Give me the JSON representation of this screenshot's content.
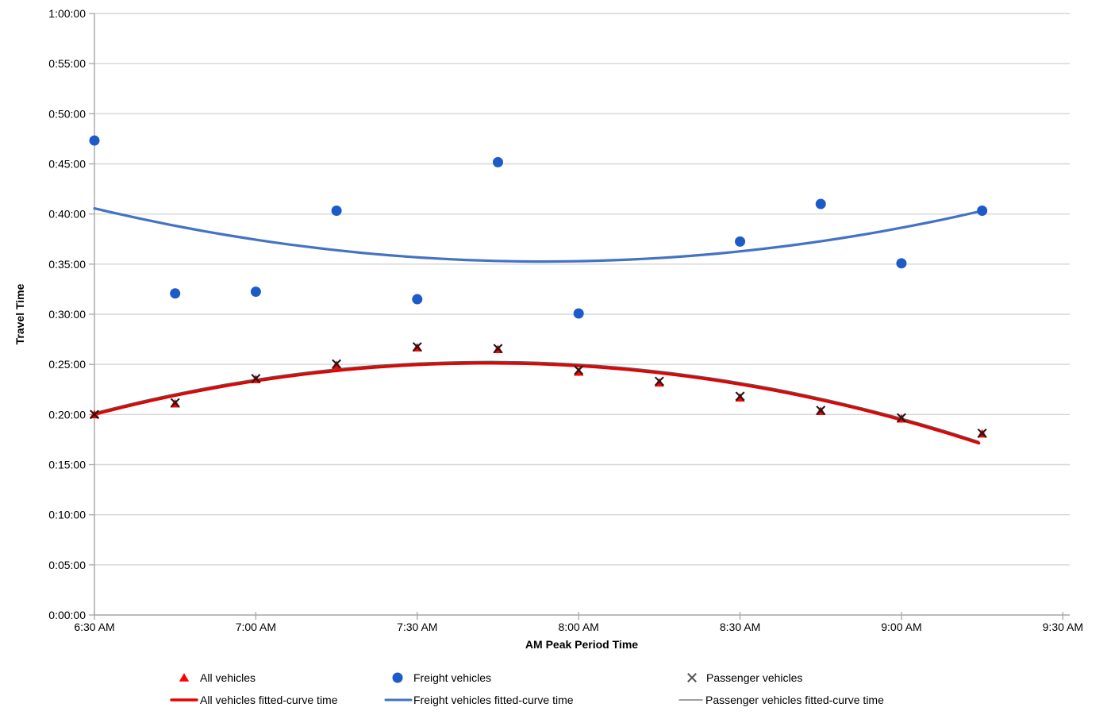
{
  "chart_data": {
    "type": "scatter",
    "title": "",
    "xlabel": "AM Peak Period Time",
    "ylabel": "Travel Time",
    "x_ticks": [
      "6:30 AM",
      "7:00 AM",
      "7:30 AM",
      "8:00 AM",
      "8:30 AM",
      "9:00 AM",
      "9:30 AM"
    ],
    "y_ticks": [
      "1:00:00",
      "0:55:00",
      "0:50:00",
      "0:45:00",
      "0:40:00",
      "0:35:00",
      "0:30:00",
      "0:25:00",
      "0:20:00",
      "0:15:00",
      "0:10:00",
      "0:05:00",
      "0:00:00"
    ],
    "x_range_hours": [
      6.5,
      9.5
    ],
    "y_range_minutes": [
      0,
      60
    ],
    "grid": "horizontal-only",
    "colors": {
      "freight_marker": "#1D5BC8",
      "freight_curve": "#4472C4",
      "all_marker": "#FF0000",
      "all_curve": "#E60000",
      "passenger_marker": "#1A1A1A",
      "passenger_curve": "#595959",
      "gridline": "#D6D6D6",
      "axis": "#A6A6A6",
      "text": "#000000"
    },
    "series": [
      {
        "name": "All vehicles",
        "marker": "triangle",
        "color": "#FF0000",
        "x_labels": [
          "6:30 AM",
          "6:45 AM",
          "7:00 AM",
          "7:15 AM",
          "7:30 AM",
          "7:45 AM",
          "8:00 AM",
          "8:15 AM",
          "8:30 AM",
          "8:45 AM",
          "9:00 AM",
          "9:15 AM"
        ],
        "x_hours": [
          6.5,
          6.75,
          7.0,
          7.25,
          7.5,
          7.75,
          8.0,
          8.25,
          8.5,
          8.75,
          9.0,
          9.25
        ],
        "y_minutes": [
          20.0,
          21.08,
          23.5,
          24.92,
          26.67,
          26.5,
          24.25,
          23.17,
          21.67,
          20.33,
          19.58,
          18.08
        ],
        "y_labels": [
          "0:20:00",
          "0:21:05",
          "0:23:30",
          "0:24:55",
          "0:26:40",
          "0:26:30",
          "0:24:15",
          "0:23:10",
          "0:21:40",
          "0:20:20",
          "0:19:35",
          "0:18:05"
        ]
      },
      {
        "name": "Freight vehicles",
        "marker": "circle",
        "color": "#1D5BC8",
        "x_labels": [
          "6:30 AM",
          "6:45 AM",
          "7:00 AM",
          "7:15 AM",
          "7:30 AM",
          "7:45 AM",
          "8:00 AM",
          "8:30 AM",
          "8:45 AM",
          "9:00 AM",
          "9:15 AM"
        ],
        "x_hours": [
          6.5,
          6.75,
          7.0,
          7.25,
          7.5,
          7.75,
          8.0,
          8.5,
          8.75,
          9.0,
          9.25
        ],
        "y_minutes": [
          47.33,
          32.08,
          32.25,
          40.33,
          31.5,
          45.17,
          30.08,
          37.25,
          41.0,
          35.08,
          40.33
        ],
        "y_labels": [
          "0:47:20",
          "0:32:05",
          "0:32:15",
          "0:40:20",
          "0:31:30",
          "0:45:10",
          "0:30:05",
          "0:37:15",
          "0:41:00",
          "0:35:05",
          "0:40:20"
        ]
      },
      {
        "name": "Passenger vehicles",
        "marker": "x",
        "color": "#1A1A1A",
        "x_labels": [
          "6:30 AM",
          "6:45 AM",
          "7:00 AM",
          "7:15 AM",
          "7:30 AM",
          "7:45 AM",
          "8:00 AM",
          "8:15 AM",
          "8:30 AM",
          "8:45 AM",
          "9:00 AM",
          "9:15 AM"
        ],
        "x_hours": [
          6.5,
          6.75,
          7.0,
          7.25,
          7.5,
          7.75,
          8.0,
          8.25,
          8.5,
          8.75,
          9.0,
          9.25
        ],
        "y_minutes": [
          20.0,
          21.17,
          23.58,
          25.05,
          26.75,
          26.58,
          24.42,
          23.32,
          21.82,
          20.42,
          19.67,
          18.13
        ],
        "y_labels": [
          "0:20:00",
          "0:21:10",
          "0:23:35",
          "0:25:05",
          "0:26:45",
          "0:26:35",
          "0:24:25",
          "0:23:20",
          "0:21:50",
          "0:20:25",
          "0:19:40",
          "0:18:10"
        ]
      }
    ],
    "fitted_curves": [
      {
        "name": "Passenger vehicles fitted-curve time",
        "color": "#595959",
        "width": 1.5,
        "quad": {
          "a": -3.447,
          "b": 53.21,
          "c": -180.05
        },
        "domain_hours": [
          6.5,
          9.24
        ],
        "endpoints": {
          "start_minutes": 20.1,
          "peak_hours": 7.72,
          "peak_minutes": 25.3,
          "end_minutes": 17.2
        }
      },
      {
        "name": "All vehicles fitted-curve time",
        "color": "#E60000",
        "width": 3.4,
        "quad": {
          "a": -3.447,
          "b": 53.21,
          "c": -180.23
        },
        "domain_hours": [
          6.5,
          9.24
        ],
        "endpoints": {
          "start_minutes": 20.0,
          "peak_hours": 7.72,
          "peak_minutes": 25.1,
          "end_minutes": 17.0
        }
      },
      {
        "name": "Freight vehicles fitted-curve time",
        "color": "#4472C4",
        "width": 3.2,
        "quad": {
          "a": 2.7397,
          "b": -43.24,
          "c": 205.87
        },
        "domain_hours": [
          6.5,
          9.26
        ],
        "endpoints": {
          "start_minutes": 40.6,
          "trough_hours": 7.89,
          "trough_minutes": 35.2,
          "end_minutes": 40.3
        }
      }
    ],
    "legend": {
      "position": "bottom",
      "row1": [
        {
          "label": "All vehicles",
          "marker": "triangle",
          "color": "#FF0000"
        },
        {
          "label": "Freight vehicles",
          "marker": "circle",
          "color": "#1D5BC8"
        },
        {
          "label": "Passenger vehicles",
          "marker": "x",
          "color": "#595959"
        }
      ],
      "row2": [
        {
          "label": "All vehicles fitted-curve time",
          "color": "#E60000",
          "width": 3.4
        },
        {
          "label": "Freight vehicles fitted-curve time",
          "color": "#4472C4",
          "width": 3.0
        },
        {
          "label": "Passenger vehicles fitted-curve time",
          "color": "#7F7F7F",
          "width": 1.5
        }
      ]
    }
  }
}
